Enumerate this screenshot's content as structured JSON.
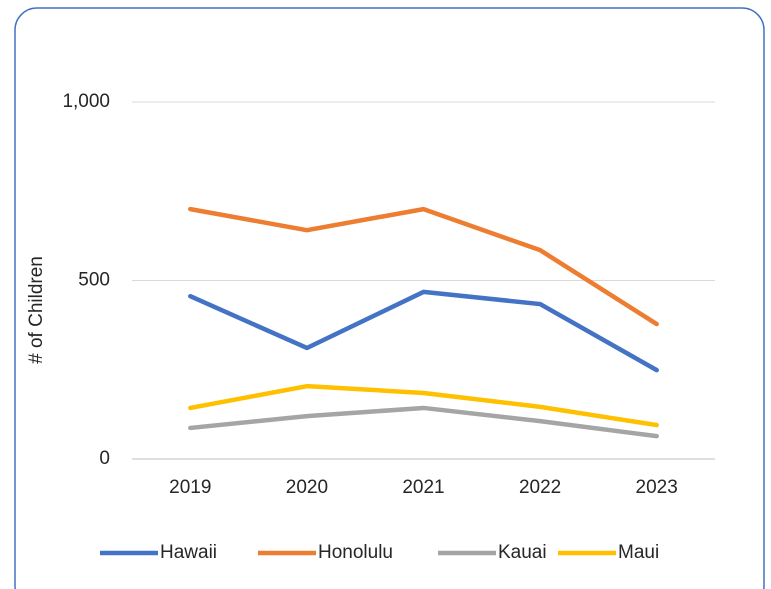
{
  "chart_data": {
    "type": "line",
    "y_label": "# of Children",
    "categories": [
      "2019",
      "2020",
      "2021",
      "2022",
      "2023"
    ],
    "series": [
      {
        "name": "Hawaii",
        "color": "#4472c4",
        "values": [
          456,
          311,
          468,
          434,
          249
        ]
      },
      {
        "name": "Honolulu",
        "color": "#ed7d31",
        "values": [
          700,
          641,
          700,
          585,
          378
        ]
      },
      {
        "name": "Kauai",
        "color": "#a5a5a5",
        "values": [
          87,
          120,
          143,
          106,
          64
        ]
      },
      {
        "name": "Maui",
        "color": "#ffc000",
        "values": [
          143,
          204,
          185,
          146,
          95
        ]
      }
    ],
    "ylim": [
      0,
      1000
    ],
    "yticks": [
      0,
      500,
      {
        "value": 1000,
        "label": "1,000"
      }
    ],
    "grid": true,
    "legend": "bottom"
  }
}
